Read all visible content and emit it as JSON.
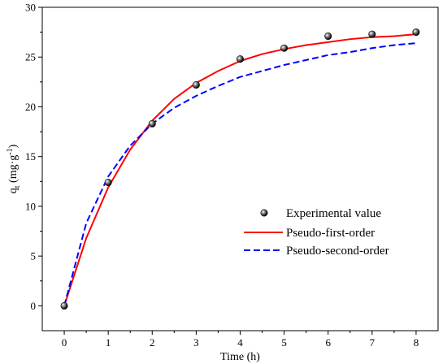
{
  "chart_data": {
    "type": "scatter",
    "xlabel": "Time (h)",
    "ylabel": {
      "base": "q",
      "sub": "t",
      "unit_open": " (mg·g",
      "unit_sup": "-1",
      "unit_close": ")"
    },
    "xlim": [
      -0.5,
      8.5
    ],
    "ylim": [
      -2.5,
      30
    ],
    "xticks": [
      0,
      1,
      2,
      3,
      4,
      5,
      6,
      7,
      8
    ],
    "yticks": [
      0,
      5,
      10,
      15,
      20,
      25,
      30
    ],
    "grid": false,
    "legend_position": "bottom-right",
    "series": [
      {
        "name": "Experimental value",
        "kind": "points",
        "color": "#000000",
        "x": [
          0,
          1,
          2,
          3,
          4,
          5,
          6,
          7,
          8
        ],
        "y": [
          0,
          12.4,
          18.3,
          22.2,
          24.8,
          25.9,
          27.1,
          27.3,
          27.5
        ]
      },
      {
        "name": "Pseudo-first-order",
        "kind": "line",
        "style": "solid",
        "color": "#ff0000",
        "x": [
          0,
          0.5,
          1,
          1.5,
          2,
          2.5,
          3,
          3.5,
          4,
          4.5,
          5,
          5.5,
          6,
          6.5,
          7,
          7.5,
          8
        ],
        "y": [
          0,
          6.8,
          11.9,
          15.7,
          18.6,
          20.8,
          22.4,
          23.6,
          24.6,
          25.3,
          25.8,
          26.2,
          26.5,
          26.8,
          27.0,
          27.1,
          27.3
        ]
      },
      {
        "name": "Pseudo-second-order",
        "kind": "line",
        "style": "dashed",
        "color": "#0000ff",
        "x": [
          0,
          0.5,
          1,
          1.5,
          2,
          2.5,
          3,
          3.5,
          4,
          4.5,
          5,
          5.5,
          6,
          6.5,
          7,
          7.5,
          8
        ],
        "y": [
          0,
          8.3,
          13.0,
          16.1,
          18.3,
          19.9,
          21.1,
          22.1,
          23.0,
          23.6,
          24.2,
          24.7,
          25.2,
          25.5,
          25.9,
          26.2,
          26.4
        ]
      }
    ]
  }
}
